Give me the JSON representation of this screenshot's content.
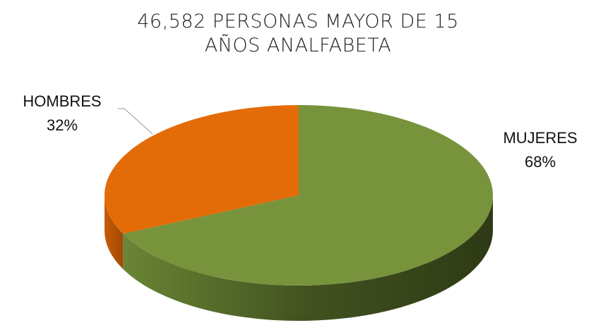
{
  "chart_data": {
    "type": "pie",
    "title": "46,582 PERSONAS MAYOR DE 15 AÑOS ANALFABETA",
    "categories": [
      "MUJERES",
      "HOMBRES"
    ],
    "values": [
      68,
      32
    ],
    "value_labels": [
      "68%",
      "32%"
    ],
    "colors": [
      "#77933c",
      "#e36c09"
    ]
  }
}
